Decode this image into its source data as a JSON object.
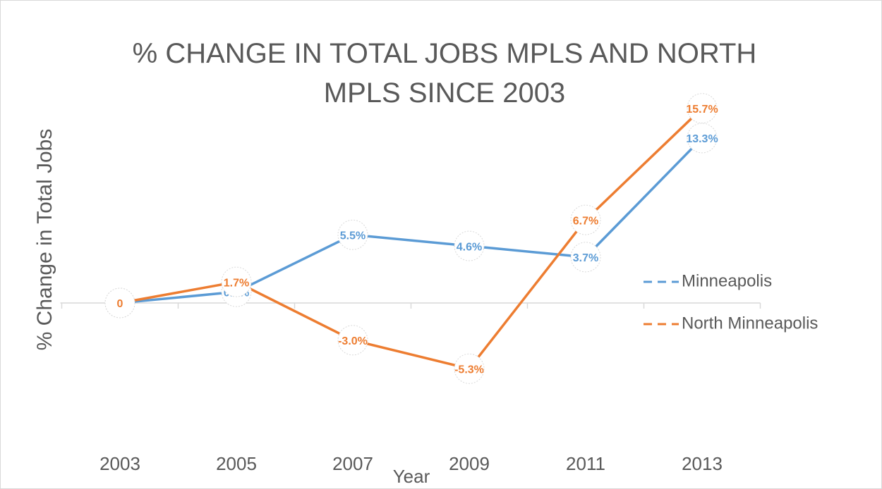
{
  "chart_data": {
    "type": "line",
    "title": "% CHANGE IN TOTAL JOBS MPLS AND NORTH MPLS SINCE 2003",
    "x_label": "Year",
    "y_label": "% Change in Total Jobs",
    "categories": [
      "2003",
      "2005",
      "2007",
      "2009",
      "2011",
      "2013"
    ],
    "series": [
      {
        "name": "Minneapolis",
        "color": "#5b9bd5",
        "values": [
          0,
          0.9,
          5.5,
          4.6,
          3.7,
          13.3
        ],
        "value_labels": [
          "0",
          "0.9%",
          "5.5%",
          "4.6%",
          "3.7%",
          "13.3%"
        ]
      },
      {
        "name": "North Minneapolis",
        "color": "#ed7d31",
        "values": [
          0,
          1.7,
          -3.0,
          -5.3,
          6.7,
          15.7
        ],
        "value_labels": [
          "0",
          "1.7%",
          "-3.0%",
          "-5.3%",
          "6.7%",
          "15.7%"
        ]
      }
    ],
    "ylim": [
      -10,
      20
    ],
    "legend": "right"
  }
}
